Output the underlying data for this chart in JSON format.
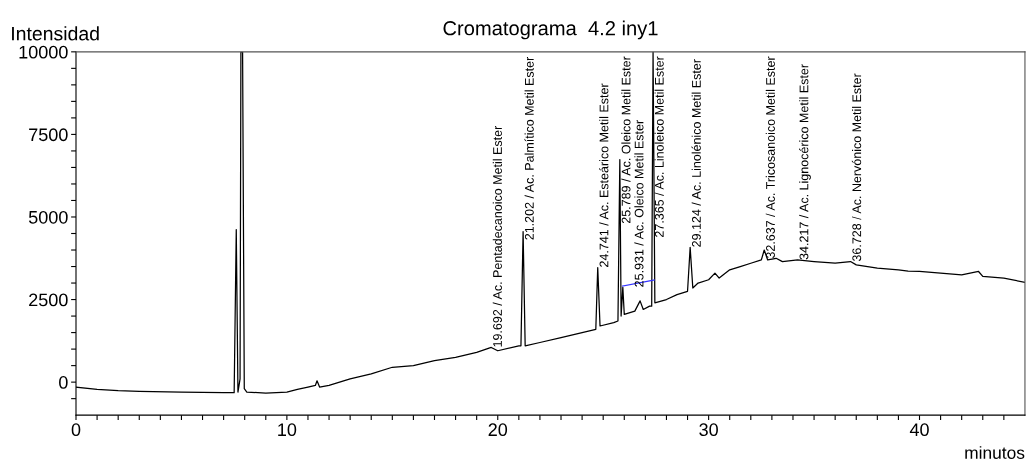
{
  "chart_data": {
    "type": "line",
    "title": "Cromatograma  4.2 iny1",
    "xlabel": "minutos",
    "ylabel": "Intensidad",
    "xlim": [
      0,
      45
    ],
    "xticks": [
      0,
      {
        "value": 1,
        "label": null
      },
      {
        "value": 2,
        "label": null
      },
      {
        "value": 3,
        "label": null
      },
      {
        "value": 4,
        "label": null
      },
      {
        "value": 5,
        "label": null
      },
      {
        "value": 6,
        "label": null
      },
      {
        "value": 7,
        "label": null
      },
      {
        "value": 8,
        "label": null
      },
      {
        "value": 9,
        "label": null
      },
      10,
      {
        "value": 11,
        "label": null
      },
      {
        "value": 12,
        "label": null
      },
      {
        "value": 13,
        "label": null
      },
      {
        "value": 14,
        "label": null
      },
      {
        "value": 15,
        "label": null
      },
      {
        "value": 16,
        "label": null
      },
      {
        "value": 17,
        "label": null
      },
      {
        "value": 18,
        "label": null
      },
      {
        "value": 19,
        "label": null
      },
      20,
      {
        "value": 21,
        "label": null
      },
      {
        "value": 22,
        "label": null
      },
      {
        "value": 23,
        "label": null
      },
      {
        "value": 24,
        "label": null
      },
      {
        "value": 25,
        "label": null
      },
      {
        "value": 26,
        "label": null
      },
      {
        "value": 27,
        "label": null
      },
      {
        "value": 28,
        "label": null
      },
      {
        "value": 29,
        "label": null
      },
      30,
      {
        "value": 31,
        "label": null
      },
      {
        "value": 32,
        "label": null
      },
      {
        "value": 33,
        "label": null
      },
      {
        "value": 34,
        "label": null
      },
      {
        "value": 35,
        "label": null
      },
      {
        "value": 36,
        "label": null
      },
      {
        "value": 37,
        "label": null
      },
      {
        "value": 38,
        "label": null
      },
      {
        "value": 39,
        "label": null
      },
      40,
      {
        "value": 41,
        "label": null
      },
      {
        "value": 42,
        "label": null
      },
      {
        "value": 43,
        "label": null
      },
      {
        "value": 44,
        "label": null
      }
    ],
    "ylim": [
      -1000,
      10000
    ],
    "yticks": [
      {
        "value": -500,
        "label": null
      },
      0,
      {
        "value": 500,
        "label": null
      },
      {
        "value": 1000,
        "label": null
      },
      {
        "value": 1500,
        "label": null
      },
      {
        "value": 2000,
        "label": null
      },
      2500,
      {
        "value": 3000,
        "label": null
      },
      {
        "value": 3500,
        "label": null
      },
      {
        "value": 4000,
        "label": null
      },
      {
        "value": 4500,
        "label": null
      },
      5000,
      {
        "value": 5500,
        "label": null
      },
      {
        "value": 6000,
        "label": null
      },
      {
        "value": 6500,
        "label": null
      },
      {
        "value": 7000,
        "label": null
      },
      7500,
      {
        "value": 8000,
        "label": null
      },
      {
        "value": 8500,
        "label": null
      },
      {
        "value": 9000,
        "label": null
      },
      {
        "value": 9500,
        "label": null
      },
      10000
    ],
    "grid": false,
    "legend": false,
    "marker": "none",
    "line_style": "solid",
    "series": [
      {
        "color": "#000000",
        "x": [
          0,
          1,
          2,
          3,
          5,
          7,
          7.5,
          7.6,
          7.68,
          7.78,
          7.82,
          7.9,
          7.98,
          8.1,
          9,
          10,
          10.5,
          11,
          11.35,
          11.43,
          11.55,
          12,
          13,
          14,
          15,
          16,
          17,
          18,
          19,
          19.692,
          20,
          21,
          21.1,
          21.202,
          21.3,
          22,
          23,
          24,
          24.65,
          24.741,
          24.85,
          25.5,
          25.7,
          25.789,
          25.85,
          25.931,
          26.0,
          26.5,
          26.75,
          26.9,
          27.2,
          27.3,
          27.365,
          27.45,
          28,
          28.5,
          29.0,
          29.124,
          29.25,
          29.5,
          30,
          30.3,
          30.5,
          31,
          31.5,
          32,
          32.5,
          32.637,
          32.8,
          33.2,
          33.5,
          34.217,
          35,
          36,
          36.728,
          37,
          38,
          39,
          39.46,
          40,
          41,
          42,
          42.8,
          43,
          44,
          45
        ],
        "values": [
          -150,
          -220,
          -260,
          -280,
          -300,
          -320,
          -320,
          4620,
          -300,
          100,
          10000,
          10000,
          -200,
          -300,
          -330,
          -300,
          -220,
          -150,
          -100,
          40,
          -150,
          -100,
          100,
          250,
          450,
          500,
          650,
          750,
          900,
          1050,
          950,
          1100,
          1100,
          4560,
          1100,
          1200,
          1350,
          1500,
          1600,
          3470,
          1700,
          1800,
          1850,
          6740,
          2000,
          2870,
          2050,
          2150,
          2460,
          2200,
          2300,
          2300,
          10000,
          2400,
          2500,
          2650,
          2750,
          4080,
          2850,
          3000,
          3100,
          3300,
          3150,
          3400,
          3500,
          3600,
          3700,
          4000,
          3700,
          3750,
          3650,
          3700,
          3650,
          3600,
          3650,
          3550,
          3450,
          3400,
          3360,
          3350,
          3300,
          3250,
          3350,
          3200,
          3150,
          3020
        ]
      },
      {
        "color": "#3333ff",
        "x": [
          25.92,
          27.42
        ],
        "values": [
          2910,
          3090
        ]
      }
    ],
    "annotations": [
      {
        "text": "19.692 / Ac. Pentadecanoico Metil Ester",
        "x": 19.692,
        "y": 1050
      },
      {
        "text": "21.202 / Ac. Palmítico Metil Ester",
        "x": 21.202,
        "y": 4560
      },
      {
        "text": "24.741 / Ac. Esteárico Metil Ester",
        "x": 24.741,
        "y": 3470
      },
      {
        "text": "25.789 / Ac. Oleico Metil Ester",
        "x": 25.789,
        "y": 6740
      },
      {
        "text": "25.931 / Ac. Oleico Metil Ester",
        "x": 25.931,
        "y": 2870
      },
      {
        "text": "27.365 / Ac. Linoleico Metil Ester",
        "x": 27.365,
        "y": 10000
      },
      {
        "text": "29.124 / Ac. Linolénico Metil Ester",
        "x": 29.124,
        "y": 4080
      },
      {
        "text": "32.637 / Ac. Tricosanoico Metil Ester",
        "x": 32.637,
        "y": 4000
      },
      {
        "text": "34.217 / Ac. Lignocérico Metil Ester",
        "x": 34.217,
        "y": 3700
      },
      {
        "text": "36.728 / Ac. Nervónico Metil Ester",
        "x": 36.728,
        "y": 3650
      }
    ]
  }
}
